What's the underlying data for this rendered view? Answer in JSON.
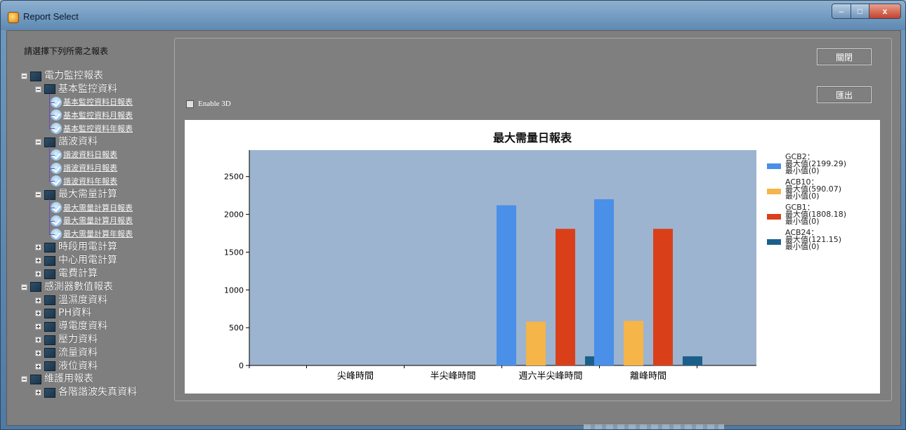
{
  "window": {
    "title": "Report Select",
    "minimize": "–",
    "maximize": "□",
    "close": "x"
  },
  "sidebar": {
    "prompt": "請選擇下列所需之報表",
    "groups": [
      {
        "label": "電力監控報表",
        "children": [
          {
            "label": "基本監控資料",
            "leaves": [
              "基本監控資料日報表",
              "基本監控資料月報表",
              "基本監控資料年報表"
            ]
          },
          {
            "label": "諧波資料",
            "leaves": [
              "諧波資料日報表",
              "諧波資料月報表",
              "諧波資料年報表"
            ]
          },
          {
            "label": "最大需量計算",
            "leaves": [
              "最大需量計算日報表",
              "最大需量計算月報表",
              "最大需量計算年報表"
            ]
          },
          {
            "label": "時段用電計算",
            "leaves": []
          },
          {
            "label": "中心用電計算",
            "leaves": []
          },
          {
            "label": "電費計算",
            "leaves": []
          }
        ]
      },
      {
        "label": "感測器數值報表",
        "children": [
          {
            "label": "溫濕度資料"
          },
          {
            "label": "PH資料"
          },
          {
            "label": "導電度資料"
          },
          {
            "label": "壓力資料"
          },
          {
            "label": "流量資料"
          },
          {
            "label": "液位資料"
          }
        ]
      },
      {
        "label": "維護用報表",
        "children": [
          {
            "label": "各階諧波失真資料"
          }
        ]
      }
    ]
  },
  "toolbar": {
    "close_label": "關閉",
    "export_label": "匯出",
    "enable3d_label": "Enable 3D",
    "enable3d_checked": false
  },
  "chart_data": {
    "type": "bar",
    "title": "最大需量日報表",
    "categories": [
      "尖峰時間",
      "半尖峰時間",
      "週六半尖峰時間",
      "離峰時間"
    ],
    "ylim": [
      0,
      2850
    ],
    "yticks": [
      0,
      500,
      1000,
      1500,
      2000,
      2500
    ],
    "grid": false,
    "legend_position": "right",
    "plot_background": "#9cb4cf",
    "series": [
      {
        "name": "GCB2",
        "color": "#4a8fe8",
        "values": [
          0,
          0,
          2120,
          2199.29
        ],
        "legend_lines": [
          "GCB2：",
          "最大值(2199.29)",
          "最小值(0)"
        ]
      },
      {
        "name": "ACB10",
        "color": "#f5b548",
        "values": [
          0,
          0,
          580,
          590.07
        ],
        "legend_lines": [
          "ACB10：",
          "最大值(590.07)",
          "最小值(0)"
        ]
      },
      {
        "name": "GCB1",
        "color": "#d9401a",
        "values": [
          0,
          0,
          1808.18,
          1808.18
        ],
        "legend_lines": [
          "GCB1：",
          "最大值(1808.18)",
          "最小值(0)"
        ]
      },
      {
        "name": "ACB24",
        "color": "#1a5f8a",
        "values": [
          0,
          0,
          121.15,
          121.15
        ],
        "legend_lines": [
          "ACB24：",
          "最大值(121.15)",
          "最小值(0)"
        ]
      }
    ]
  }
}
